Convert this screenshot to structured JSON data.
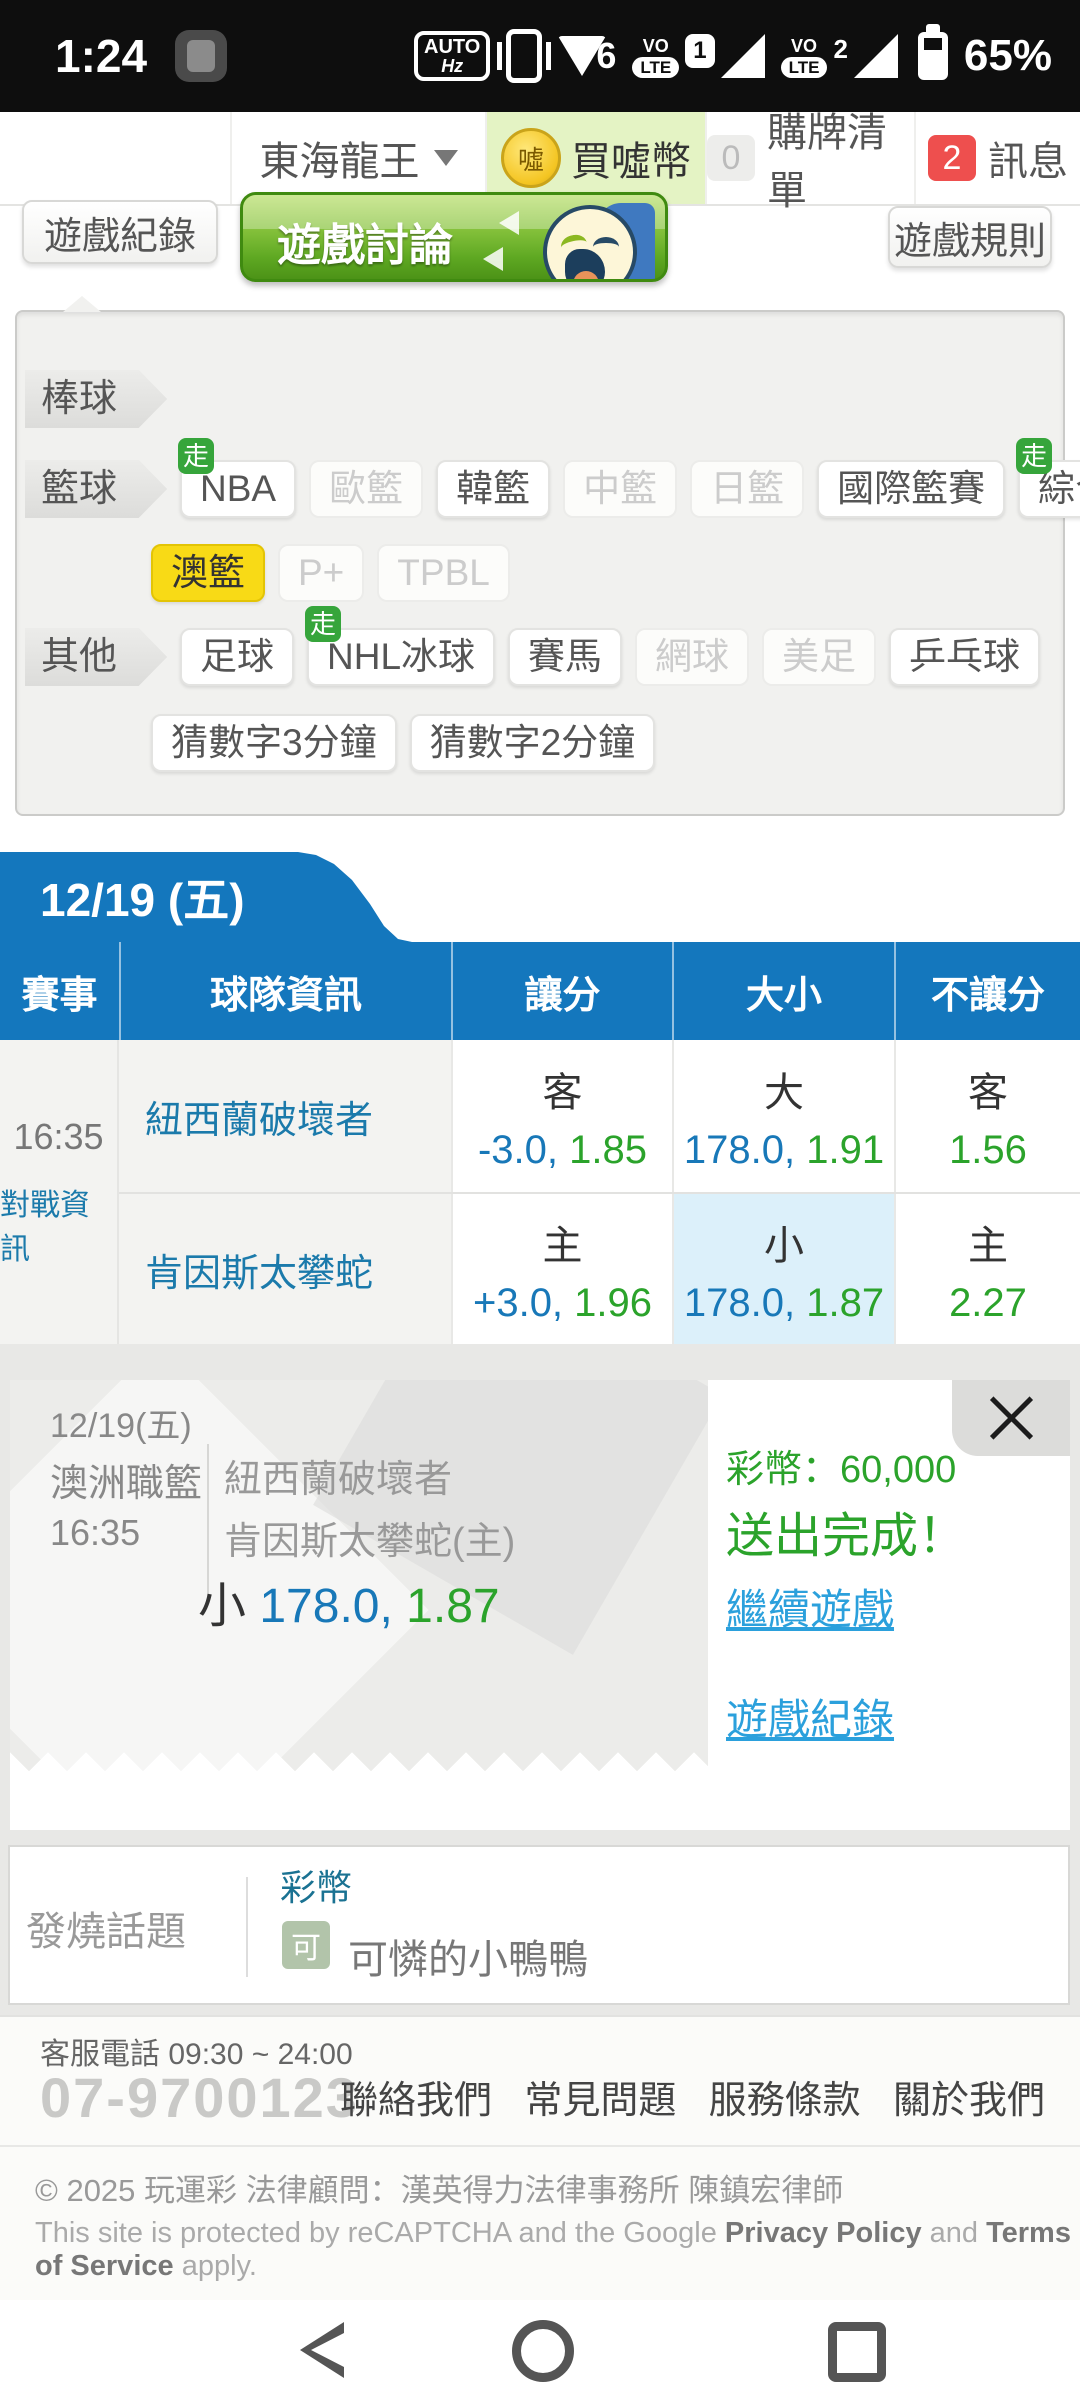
{
  "status_bar": {
    "time": "1:24",
    "auto_label": "AUTO",
    "hz_label": "Hz",
    "wifi_number": "6",
    "vo_label": "VO",
    "lte_label": "LTE",
    "sim1": "1",
    "sim2": "2",
    "battery_percent": "65%"
  },
  "header": {
    "account": "東海龍王",
    "coin_char": "噓",
    "buy_coin_label": "買噓幣",
    "cart_count": "0",
    "cart_label": "購牌清單",
    "message_count": "2",
    "message_label": "訊息"
  },
  "actions": {
    "game_record": "遊戲紀錄",
    "game_forum": "遊戲討論",
    "game_rules": "遊戲規則"
  },
  "sports_panel": {
    "live_badge": "走",
    "rows": [
      {
        "tag": "棒球",
        "items": []
      },
      {
        "tag": "籃球",
        "items": [
          {
            "label": "NBA",
            "state": "active",
            "live": true
          },
          {
            "label": "歐籃",
            "state": "disabled"
          },
          {
            "label": "韓籃",
            "state": "active"
          },
          {
            "label": "中籃",
            "state": "disabled"
          },
          {
            "label": "日籃",
            "state": "disabled"
          },
          {
            "label": "國際籃賽",
            "state": "active"
          },
          {
            "label": "綜合籃賽",
            "state": "active",
            "live": true
          }
        ]
      },
      {
        "tag": "",
        "items": [
          {
            "label": "澳籃",
            "state": "selected"
          },
          {
            "label": "P+",
            "state": "disabled"
          },
          {
            "label": "TPBL",
            "state": "disabled"
          }
        ]
      },
      {
        "tag": "其他",
        "items": [
          {
            "label": "足球",
            "state": "active"
          },
          {
            "label": "NHL冰球",
            "state": "active",
            "live": true
          },
          {
            "label": "賽馬",
            "state": "active"
          },
          {
            "label": "網球",
            "state": "disabled"
          },
          {
            "label": "美足",
            "state": "disabled"
          },
          {
            "label": "乒乓球",
            "state": "active"
          }
        ]
      },
      {
        "tag": "",
        "items": [
          {
            "label": "猜數字3分鐘",
            "state": "active"
          },
          {
            "label": "猜數字2分鐘",
            "state": "active"
          }
        ]
      }
    ]
  },
  "odds_table": {
    "date_tab": "12/19 (五)",
    "columns": [
      "賽事",
      "球隊資訊",
      "讓分",
      "大小",
      "不讓分"
    ],
    "match": {
      "time": "16:35",
      "info_link": "對戰資訊",
      "rows": [
        {
          "team": "紐西蘭破壞者",
          "handicap": {
            "side": "客",
            "line": "-3.0,",
            "odds": "1.85"
          },
          "total": {
            "side": "大",
            "line": "178.0,",
            "odds": "1.91"
          },
          "moneyline": {
            "side": "客",
            "odds": "1.56"
          }
        },
        {
          "team": "肯因斯太攀蛇",
          "handicap": {
            "side": "主",
            "line": "+3.0,",
            "odds": "1.96"
          },
          "total": {
            "side": "小",
            "line": "178.0,",
            "odds": "1.87",
            "selected": true
          },
          "moneyline": {
            "side": "主",
            "odds": "2.27"
          }
        }
      ]
    }
  },
  "bet_slip": {
    "date": "12/19(五)",
    "league": "澳洲職籃",
    "time": "16:35",
    "away_team": "紐西蘭破壞者",
    "home_team": "肯因斯太攀蛇(主)",
    "pick_side": "小",
    "pick_line": "178.0,",
    "pick_odds": "1.87",
    "balance": "彩幣：60,000",
    "status": "送出完成！",
    "continue_link": "繼續遊戲",
    "record_link": "遊戲紀錄"
  },
  "hot_topics": {
    "section": "發燒話題",
    "topic": "彩幣",
    "post_badge": "可",
    "post_title": "可憐的小鴨鴨"
  },
  "footer": {
    "service_hours": "客服電話 09:30 ~ 24:00",
    "phone": "07-9700123",
    "links": [
      "聯絡我們",
      "常見問題",
      "服務條款",
      "關於我們"
    ],
    "copyright": "© 2025 玩運彩 法律顧問：漢英得力法律事務所 陳鎮宏律師",
    "recaptcha_prefix": "This site is protected by reCAPTCHA and the Google ",
    "privacy_policy": "Privacy Policy",
    "and_text": " and ",
    "terms_of_service": "Terms of Service",
    "recaptcha_suffix": " apply."
  },
  "colors": {
    "accent_blue": "#1477bd",
    "odds_green": "#2ba32b",
    "number_blue": "#1878b8",
    "link_blue": "#2ba0dc",
    "selected_cell": "#dcf0fa",
    "highlight_yellow": "#f8da16",
    "live_green": "#36a53b",
    "badge_red": "#ee4f4e"
  }
}
